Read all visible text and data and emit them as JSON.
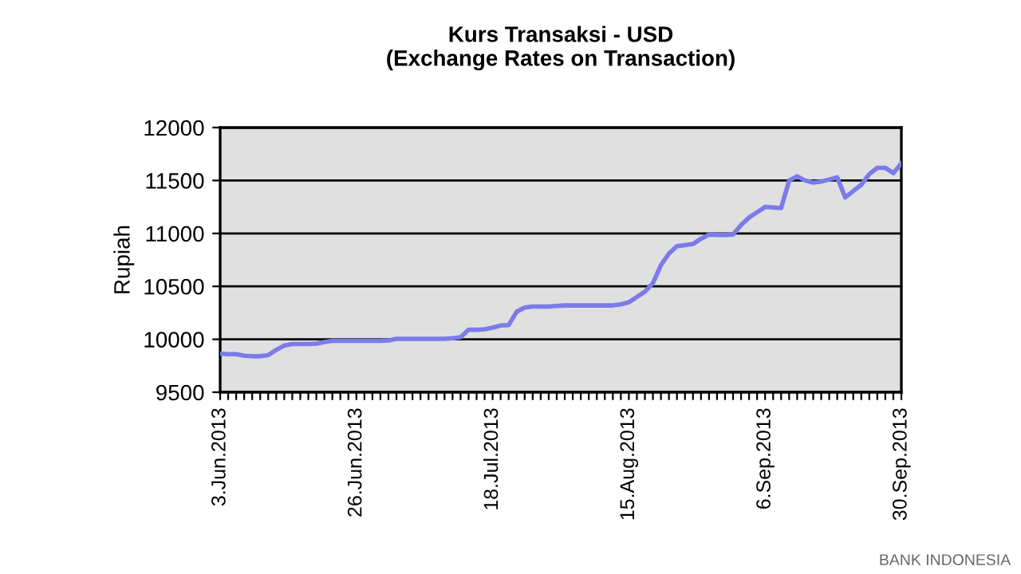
{
  "chart_data": {
    "type": "line",
    "title": "Kurs Transaksi - USD\n(Exchange Rates on Transaction)",
    "ylabel": "Rupiah",
    "categories": [
      "3.Jun.2013",
      null,
      null,
      null,
      null,
      null,
      null,
      null,
      null,
      null,
      null,
      null,
      null,
      null,
      null,
      null,
      null,
      "26.Jun.2013",
      null,
      null,
      null,
      null,
      null,
      null,
      null,
      null,
      null,
      null,
      null,
      null,
      null,
      null,
      null,
      null,
      "18.Jul.2013",
      null,
      null,
      null,
      null,
      null,
      null,
      null,
      null,
      null,
      null,
      null,
      null,
      null,
      null,
      null,
      null,
      "15.Aug.2013",
      null,
      null,
      null,
      null,
      null,
      null,
      null,
      null,
      null,
      null,
      null,
      null,
      null,
      null,
      null,
      null,
      "6.Sep.2013",
      null,
      null,
      null,
      null,
      null,
      null,
      null,
      null,
      null,
      null,
      null,
      null,
      null,
      null,
      null,
      null,
      "30.Sep.2013"
    ],
    "series": [
      {
        "color": "#7b7bea",
        "values": [
          9865,
          9860,
          9860,
          9845,
          9840,
          9840,
          9850,
          9900,
          9940,
          9955,
          9955,
          9955,
          9960,
          9975,
          9985,
          9985,
          9985,
          9985,
          9985,
          9985,
          9985,
          9990,
          10005,
          10005,
          10005,
          10005,
          10005,
          10005,
          10005,
          10010,
          10020,
          10090,
          10090,
          10095,
          10110,
          10130,
          10135,
          10260,
          10300,
          10310,
          10310,
          10310,
          10315,
          10320,
          10320,
          10320,
          10320,
          10320,
          10320,
          10320,
          10330,
          10350,
          10400,
          10450,
          10530,
          10700,
          10810,
          10880,
          10890,
          10900,
          10950,
          10990,
          10985,
          10985,
          10990,
          11080,
          11150,
          11200,
          11250,
          11245,
          11240,
          11500,
          11540,
          11500,
          11480,
          11490,
          11510,
          11530,
          11340,
          11400,
          11460,
          11560,
          11620,
          11620,
          11570,
          11660
        ]
      }
    ],
    "ylim": [
      9500,
      12000
    ],
    "yticks": [
      9500,
      10000,
      10500,
      11000,
      11500,
      12000
    ],
    "grid": "y",
    "legend": false,
    "marker": "none",
    "line_style": "solid",
    "annotations": [
      "BANK INDONESIA"
    ]
  }
}
